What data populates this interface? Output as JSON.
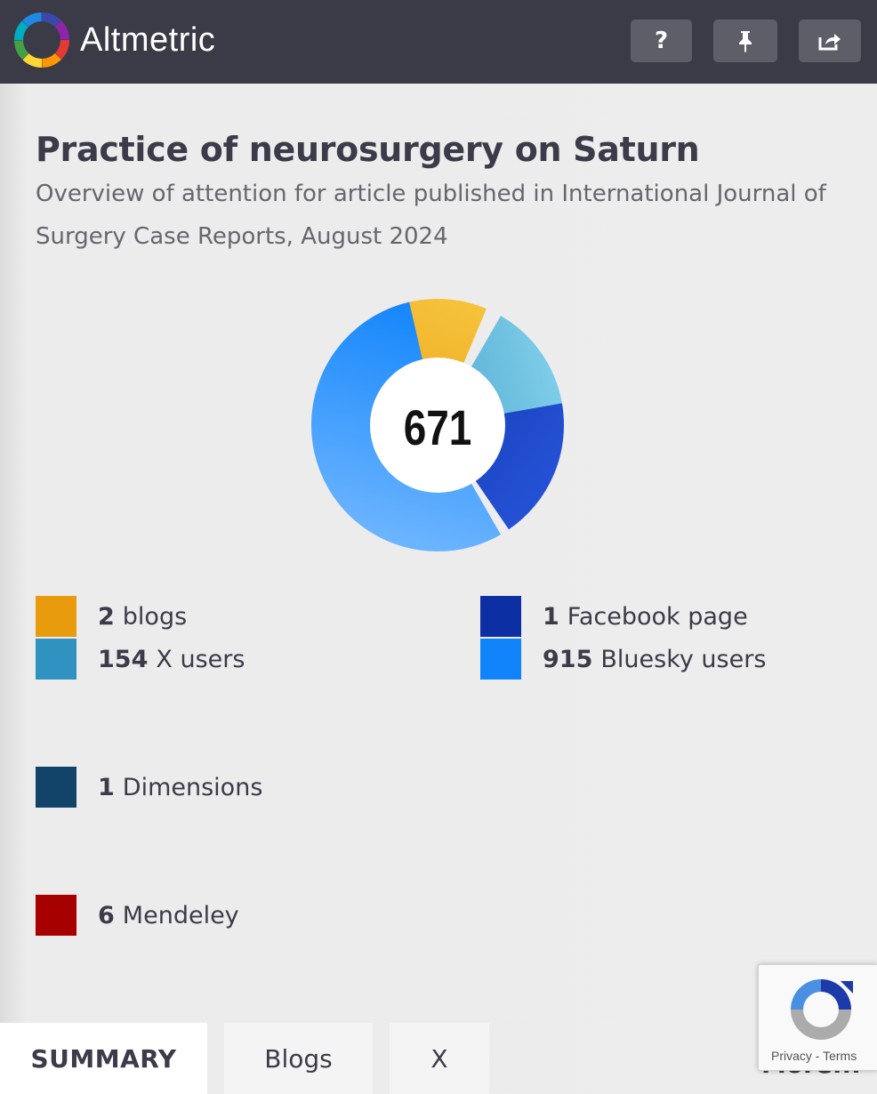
{
  "header": {
    "brand": "Altmetric",
    "help_label": "?",
    "icons": [
      "altmetric-logo-icon",
      "help-icon",
      "pin-icon",
      "share-icon"
    ]
  },
  "article": {
    "title": "Practice of neurosurgery on Saturn",
    "subtitle": "Overview of attention for article published in International Journal of Surgery Case Reports, August 2024"
  },
  "score": "671",
  "legend": [
    {
      "count": "2",
      "label": "blogs",
      "color": "#e89b0c"
    },
    {
      "count": "154",
      "label": "X users",
      "color": "#2f92c0"
    },
    {
      "count": "1",
      "label": "Facebook page",
      "color": "#0c2fa3"
    },
    {
      "count": "915",
      "label": "Bluesky users",
      "color": "#1184fb"
    },
    {
      "count": "1",
      "label": "Dimensions",
      "color": "#12446a"
    },
    {
      "count": "6",
      "label": "Mendeley",
      "color": "#a70000"
    }
  ],
  "tabs": [
    {
      "label": "SUMMARY",
      "active": true
    },
    {
      "label": "Blogs",
      "active": false
    },
    {
      "label": "X",
      "active": false
    }
  ],
  "more_label": "More...",
  "recaptcha": {
    "privacy": "Privacy",
    "separator": " - ",
    "terms": "Terms"
  },
  "colors": {
    "header_bg": "#3b3b48",
    "page_bg": "#ededed",
    "text": "#3b3b4a"
  }
}
